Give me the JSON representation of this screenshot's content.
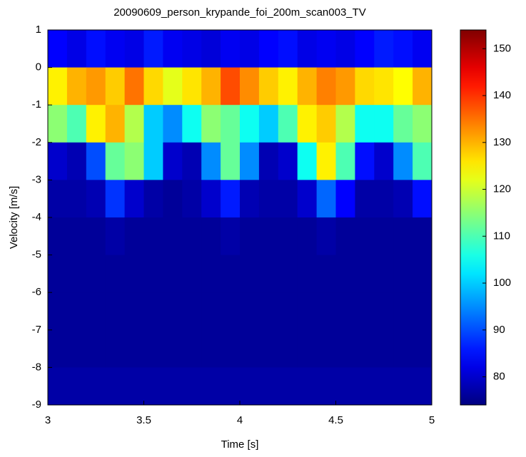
{
  "chart_data": {
    "type": "heatmap",
    "title": "20090609_person_krypande_foi_200m_scan003_TV",
    "x_label": "Time [s]",
    "y_label": "Velocity [m/s]",
    "xlim": [
      3,
      5
    ],
    "ylim": [
      -9,
      1
    ],
    "xticks": [
      3,
      3.5,
      4,
      4.5,
      5
    ],
    "yticks": [
      1,
      0,
      -1,
      -2,
      -3,
      -4,
      -5,
      -6,
      -7,
      -8,
      -9
    ],
    "colormap": "jet",
    "clim": [
      74,
      154
    ],
    "cticks": [
      80,
      90,
      100,
      110,
      120,
      130,
      140,
      150
    ],
    "z": [
      [
        84,
        82,
        85,
        83,
        82,
        86,
        83,
        82,
        81,
        83,
        82,
        84,
        85,
        82,
        83,
        82,
        84,
        86,
        85,
        83
      ],
      [
        125,
        130,
        132,
        128,
        135,
        127,
        122,
        126,
        130,
        138,
        133,
        128,
        125,
        130,
        134,
        132,
        127,
        126,
        124,
        130
      ],
      [
        115,
        110,
        125,
        130,
        118,
        100,
        95,
        105,
        115,
        112,
        105,
        100,
        110,
        125,
        128,
        118,
        105,
        105,
        112,
        115
      ],
      [
        80,
        78,
        90,
        112,
        115,
        100,
        80,
        78,
        95,
        112,
        95,
        78,
        80,
        105,
        125,
        110,
        85,
        80,
        95,
        110
      ],
      [
        77,
        77,
        78,
        88,
        80,
        77,
        76,
        77,
        80,
        86,
        78,
        77,
        77,
        80,
        92,
        84,
        77,
        77,
        78,
        85
      ],
      [
        76,
        76,
        76,
        77,
        76,
        76,
        76,
        76,
        76,
        77,
        76,
        76,
        76,
        76,
        77,
        76,
        76,
        76,
        76,
        76
      ],
      [
        76,
        76,
        76,
        76,
        76,
        76,
        76,
        76,
        76,
        76,
        76,
        76,
        76,
        76,
        76,
        76,
        76,
        76,
        76,
        76
      ],
      [
        76,
        76,
        76,
        76,
        76,
        76,
        76,
        76,
        76,
        76,
        76,
        76,
        76,
        76,
        76,
        76,
        76,
        76,
        76,
        76
      ],
      [
        76,
        76,
        76,
        76,
        76,
        76,
        76,
        76,
        76,
        76,
        76,
        76,
        76,
        76,
        76,
        76,
        76,
        76,
        76,
        76
      ],
      [
        77,
        77,
        77,
        77,
        77,
        77,
        77,
        77,
        77,
        77,
        77,
        77,
        77,
        77,
        77,
        77,
        77,
        77,
        77,
        77
      ]
    ]
  }
}
